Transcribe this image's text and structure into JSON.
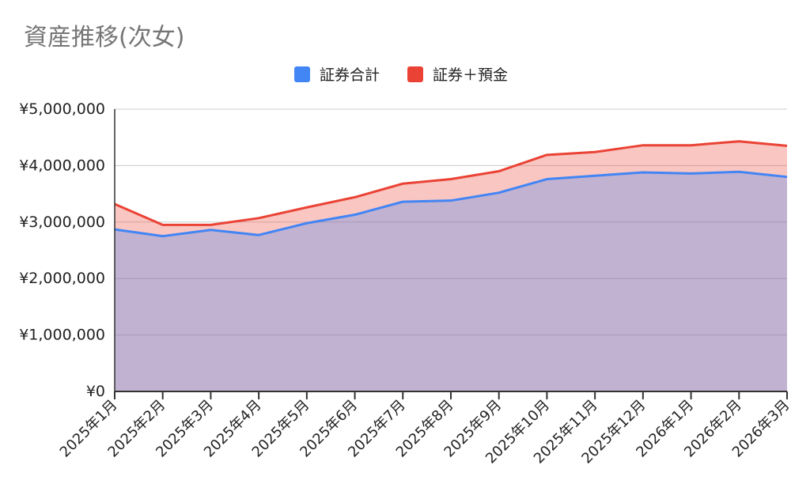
{
  "chart_data": {
    "type": "area",
    "title": "資産推移(次女)",
    "categories": [
      "2025年1月",
      "2025年2月",
      "2025年3月",
      "2025年4月",
      "2025年5月",
      "2025年6月",
      "2025年7月",
      "2025年8月",
      "2025年9月",
      "2025年10月",
      "2025年11月",
      "2025年12月",
      "2026年1月",
      "2026年2月",
      "2026年3月"
    ],
    "series": [
      {
        "name": "証券合計",
        "color": "#4285F4",
        "values": [
          2870000,
          2750000,
          2860000,
          2770000,
          2980000,
          3130000,
          3360000,
          3380000,
          3520000,
          3760000,
          3820000,
          3880000,
          3860000,
          3890000,
          3800000
        ]
      },
      {
        "name": "証券＋預金",
        "color": "#EA4335",
        "values": [
          3320000,
          2950000,
          2950000,
          3070000,
          3260000,
          3440000,
          3680000,
          3760000,
          3900000,
          4190000,
          4240000,
          4360000,
          4360000,
          4430000,
          4350000
        ]
      }
    ],
    "y_ticks": [
      "¥0",
      "¥1,000,000",
      "¥2,000,000",
      "¥3,000,000",
      "¥4,000,000",
      "¥5,000,000"
    ],
    "ylim": [
      0,
      5000000
    ],
    "grid": true,
    "legend": "top-center",
    "xlabel": "",
    "ylabel": ""
  }
}
